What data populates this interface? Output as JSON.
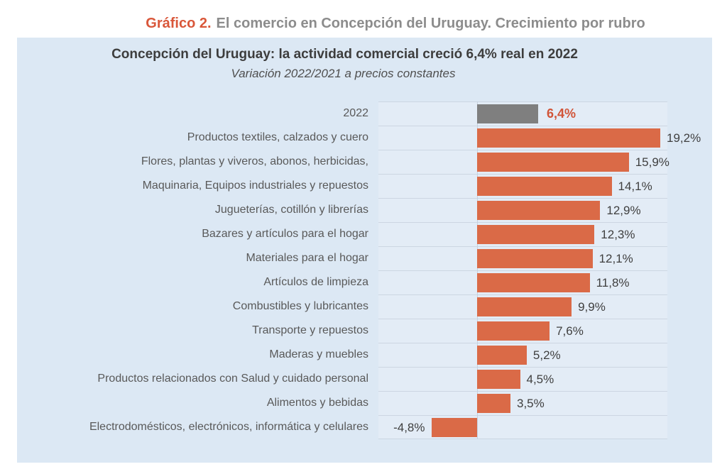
{
  "page_header": {
    "prefix": "Gráfico 2.",
    "rest": "El comercio en Concepción del Uruguay. Crecimiento por rubro"
  },
  "chart_data": {
    "type": "bar",
    "orientation": "horizontal",
    "title": "Concepción del Uruguay: la actividad comercial creció 6,4% real en 2022",
    "subtitle": "Variación 2022/2021 a precios constantes",
    "unit": "percent",
    "xlim": [
      -10.3,
      19.9
    ],
    "grid": "row-separators",
    "legend": "none",
    "highlight_index": 0,
    "categories": [
      "2022",
      "Productos textiles, calzados y cuero",
      "Flores, plantas y viveros, abonos, herbicidas,",
      "Maquinaria, Equipos industriales y repuestos",
      "Jugueterías, cotillón y librerías",
      "Bazares y artículos para el hogar",
      "Materiales para el hogar",
      "Artículos de limpieza",
      "Combustibles y lubricantes",
      "Transporte y repuestos",
      "Maderas y muebles",
      "Productos relacionados con Salud y cuidado personal",
      "Alimentos y bebidas",
      "Electrodomésticos, electrónicos, informática y celulares"
    ],
    "values": [
      6.4,
      19.2,
      15.9,
      14.1,
      12.9,
      12.3,
      12.1,
      11.8,
      9.9,
      7.6,
      5.2,
      4.5,
      3.5,
      -4.8
    ],
    "value_labels": [
      "6,4%",
      "19,2%",
      "15,9%",
      "14,1%",
      "12,9%",
      "12,3%",
      "12,1%",
      "11,8%",
      "9,9%",
      "7,6%",
      "5,2%",
      "4,5%",
      "3,5%",
      "-4,8%"
    ],
    "colors": {
      "bar": "#da6a47",
      "highlight_bar": "#7f7f7f",
      "highlight_value_text": "#d15438",
      "value_text": "#3f3f3f",
      "category_text": "#595959",
      "panel_background": "#dce8f4",
      "plot_background": "#e3ecf6",
      "gridline": "#ccd6e2",
      "axis_line": "#c6d1de",
      "title_text": "#3d3d3d",
      "subtitle_text": "#4f4f4f",
      "header_accent": "#d9573a",
      "header_text": "#8c8c8c"
    }
  }
}
